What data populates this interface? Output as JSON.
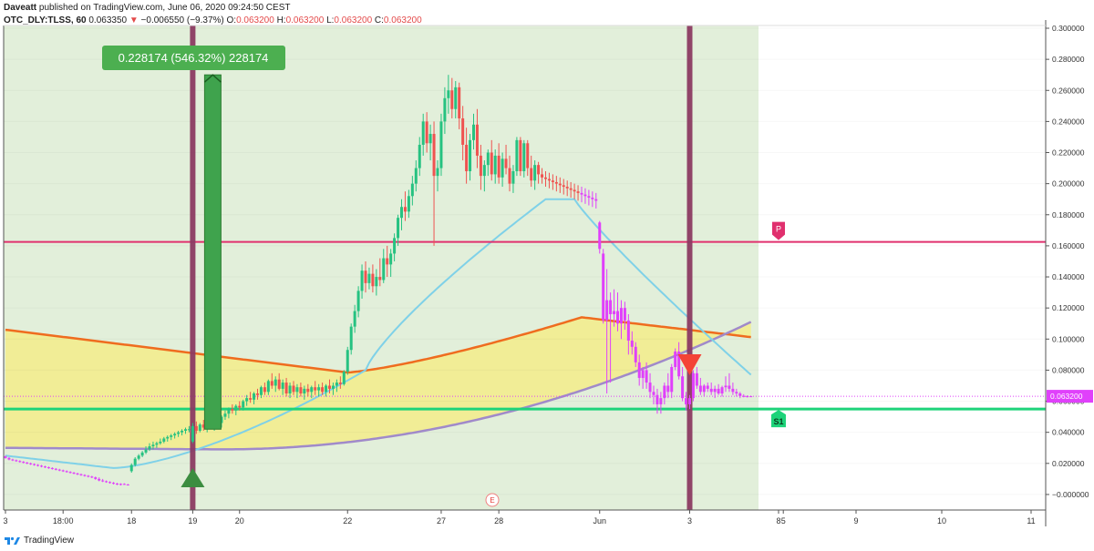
{
  "header": {
    "publisher": "Daveatt",
    "published_text": "published on TradingView.com, June 06, 2020 09:24:50 CEST",
    "symbol": "OTC_DLY:TLSS, 60",
    "last": "0.063350",
    "change": "−0.006550 (−9.37%)",
    "o_label": "O:",
    "o_value": "0.063200",
    "h_label": "H:",
    "h_value": "0.063200",
    "l_label": "L:",
    "l_value": "0.063200",
    "c_label": "C:",
    "c_value": "0.063200"
  },
  "footer": {
    "brand": "TradingView",
    "logo_icon": "tradingview-logo-icon"
  },
  "colors": {
    "bull": "#26c281",
    "bear": "#ef5350",
    "purple_candle": "#e040fb",
    "green_bg": "#e2efda",
    "yellow_fill": "#f1ec92",
    "orange_ma": "#ef6c1f",
    "purple_ma": "#a08aca",
    "cyan_ma": "#7fd1e8",
    "pivot": "#e0306e",
    "support": "#1ed37a",
    "vbar": "#8b3a62"
  },
  "chart_data": {
    "type": "candlestick",
    "y_axis": {
      "range": [
        -0.01,
        0.3
      ],
      "ticks": [
        "0.300000",
        "0.280000",
        "0.260000",
        "0.240000",
        "0.220000",
        "0.200000",
        "0.180000",
        "0.160000",
        "0.140000",
        "0.120000",
        "0.100000",
        "0.080000",
        "0.060000",
        "0.040000",
        "0.020000",
        "−0.000000"
      ],
      "tick_values": [
        0.3,
        0.28,
        0.26,
        0.24,
        0.22,
        0.2,
        0.18,
        0.16,
        0.14,
        0.12,
        0.1,
        0.08,
        0.06,
        0.04,
        0.02,
        0.0
      ],
      "last_price_label": "0.063200",
      "last_price": 0.0632
    },
    "x_axis": {
      "labels": [
        "3",
        "18:00",
        "18",
        "19",
        "20",
        "22",
        "27",
        "28",
        "Jun",
        "3",
        "5",
        "8",
        "9",
        "10",
        "11"
      ],
      "label_index": [
        0,
        16,
        35,
        52,
        65,
        95,
        121,
        137,
        165,
        190,
        216,
        234,
        258,
        283,
        307
      ]
    },
    "measure": {
      "label": "0.228174 (546.32%) 228174",
      "from": 0.042,
      "to": 0.27
    },
    "pivot": {
      "label": "P",
      "value": 0.1625
    },
    "support": {
      "label": "S1",
      "value": 0.055
    },
    "earnings_marker": "E",
    "buy_arrow_index": 52,
    "sell_arrow_index": 190,
    "candles": [
      [
        0.0245,
        0.025,
        0.023,
        0.0235
      ],
      [
        0.0235,
        0.024,
        0.022,
        0.0225
      ],
      [
        0.0225,
        0.023,
        0.0215,
        0.022
      ],
      [
        0.022,
        0.0225,
        0.021,
        0.0215
      ],
      [
        0.0215,
        0.022,
        0.0205,
        0.021
      ],
      [
        0.021,
        0.0215,
        0.02,
        0.0205
      ],
      [
        0.0205,
        0.021,
        0.0195,
        0.02
      ],
      [
        0.02,
        0.0205,
        0.019,
        0.0195
      ],
      [
        0.0195,
        0.02,
        0.0185,
        0.019
      ],
      [
        0.019,
        0.0195,
        0.018,
        0.0185
      ],
      [
        0.0185,
        0.019,
        0.0175,
        0.018
      ],
      [
        0.018,
        0.0185,
        0.017,
        0.0175
      ],
      [
        0.0175,
        0.018,
        0.0165,
        0.017
      ],
      [
        0.017,
        0.0175,
        0.016,
        0.0165
      ],
      [
        0.0165,
        0.017,
        0.0155,
        0.016
      ],
      [
        0.016,
        0.0165,
        0.015,
        0.0155
      ],
      [
        0.0155,
        0.016,
        0.0145,
        0.015
      ],
      [
        0.015,
        0.0155,
        0.014,
        0.0145
      ],
      [
        0.0145,
        0.015,
        0.0135,
        0.014
      ],
      [
        0.014,
        0.0145,
        0.013,
        0.0135
      ],
      [
        0.0135,
        0.014,
        0.0125,
        0.013
      ],
      [
        0.013,
        0.0135,
        0.012,
        0.0125
      ],
      [
        0.0125,
        0.013,
        0.0115,
        0.012
      ],
      [
        0.012,
        0.0125,
        0.011,
        0.0115
      ],
      [
        0.0115,
        0.012,
        0.0105,
        0.011
      ],
      [
        0.011,
        0.0115,
        0.0095,
        0.01
      ],
      [
        0.01,
        0.011,
        0.0085,
        0.009
      ],
      [
        0.009,
        0.01,
        0.008,
        0.0085
      ],
      [
        0.0085,
        0.009,
        0.0075,
        0.008
      ],
      [
        0.008,
        0.0085,
        0.007,
        0.0075
      ],
      [
        0.0075,
        0.008,
        0.0065,
        0.007
      ],
      [
        0.007,
        0.0075,
        0.006,
        0.0065
      ],
      [
        0.0065,
        0.0072,
        0.0058,
        0.0068
      ],
      [
        0.0068,
        0.0072,
        0.0062,
        0.0064
      ],
      [
        0.0064,
        0.0068,
        0.0058,
        0.0061
      ],
      [
        0.015,
        0.02,
        0.014,
        0.019
      ],
      [
        0.019,
        0.024,
        0.018,
        0.023
      ],
      [
        0.023,
        0.026,
        0.022,
        0.025
      ],
      [
        0.025,
        0.028,
        0.024,
        0.027
      ],
      [
        0.027,
        0.031,
        0.026,
        0.029
      ],
      [
        0.029,
        0.033,
        0.028,
        0.031
      ],
      [
        0.031,
        0.034,
        0.029,
        0.032
      ],
      [
        0.032,
        0.034,
        0.03,
        0.033
      ],
      [
        0.033,
        0.036,
        0.032,
        0.034
      ],
      [
        0.034,
        0.037,
        0.033,
        0.036
      ],
      [
        0.036,
        0.038,
        0.034,
        0.037
      ],
      [
        0.037,
        0.039,
        0.035,
        0.038
      ],
      [
        0.038,
        0.04,
        0.036,
        0.039
      ],
      [
        0.039,
        0.041,
        0.037,
        0.04
      ],
      [
        0.04,
        0.042,
        0.038,
        0.041
      ],
      [
        0.041,
        0.043,
        0.039,
        0.042
      ],
      [
        0.042,
        0.044,
        0.04,
        0.042
      ],
      [
        0.034,
        0.046,
        0.033,
        0.044
      ],
      [
        0.044,
        0.047,
        0.039,
        0.041
      ],
      [
        0.041,
        0.046,
        0.04,
        0.045
      ],
      [
        0.045,
        0.048,
        0.041,
        0.043
      ],
      [
        0.043,
        0.047,
        0.04,
        0.046
      ],
      [
        0.046,
        0.049,
        0.042,
        0.044
      ],
      [
        0.044,
        0.048,
        0.041,
        0.047
      ],
      [
        0.047,
        0.05,
        0.043,
        0.046
      ],
      [
        0.046,
        0.051,
        0.043,
        0.05
      ],
      [
        0.05,
        0.054,
        0.048,
        0.052
      ],
      [
        0.052,
        0.056,
        0.049,
        0.055
      ],
      [
        0.055,
        0.058,
        0.052,
        0.054
      ],
      [
        0.054,
        0.058,
        0.051,
        0.057
      ],
      [
        0.057,
        0.06,
        0.054,
        0.056
      ],
      [
        0.056,
        0.061,
        0.054,
        0.06
      ],
      [
        0.06,
        0.064,
        0.057,
        0.062
      ],
      [
        0.062,
        0.066,
        0.059,
        0.061
      ],
      [
        0.061,
        0.066,
        0.058,
        0.065
      ],
      [
        0.065,
        0.068,
        0.061,
        0.064
      ],
      [
        0.064,
        0.07,
        0.062,
        0.069
      ],
      [
        0.069,
        0.072,
        0.064,
        0.066
      ],
      [
        0.066,
        0.074,
        0.064,
        0.073
      ],
      [
        0.073,
        0.078,
        0.068,
        0.07
      ],
      [
        0.07,
        0.076,
        0.066,
        0.074
      ],
      [
        0.074,
        0.078,
        0.067,
        0.068
      ],
      [
        0.068,
        0.074,
        0.064,
        0.072
      ],
      [
        0.072,
        0.075,
        0.063,
        0.065
      ],
      [
        0.065,
        0.072,
        0.062,
        0.07
      ],
      [
        0.07,
        0.073,
        0.064,
        0.066
      ],
      [
        0.066,
        0.071,
        0.062,
        0.069
      ],
      [
        0.069,
        0.072,
        0.063,
        0.065
      ],
      [
        0.065,
        0.07,
        0.061,
        0.068
      ],
      [
        0.068,
        0.071,
        0.063,
        0.066
      ],
      [
        0.066,
        0.07,
        0.062,
        0.069
      ],
      [
        0.069,
        0.073,
        0.064,
        0.067
      ],
      [
        0.067,
        0.071,
        0.063,
        0.069
      ],
      [
        0.069,
        0.072,
        0.064,
        0.066
      ],
      [
        0.066,
        0.071,
        0.063,
        0.07
      ],
      [
        0.07,
        0.074,
        0.065,
        0.068
      ],
      [
        0.068,
        0.072,
        0.064,
        0.07
      ],
      [
        0.07,
        0.074,
        0.066,
        0.072
      ],
      [
        0.072,
        0.076,
        0.068,
        0.071
      ],
      [
        0.071,
        0.08,
        0.07,
        0.079
      ],
      [
        0.079,
        0.095,
        0.077,
        0.093
      ],
      [
        0.093,
        0.11,
        0.09,
        0.108
      ],
      [
        0.108,
        0.122,
        0.104,
        0.118
      ],
      [
        0.118,
        0.134,
        0.114,
        0.131
      ],
      [
        0.131,
        0.148,
        0.126,
        0.144
      ],
      [
        0.144,
        0.15,
        0.13,
        0.136
      ],
      [
        0.136,
        0.146,
        0.132,
        0.142
      ],
      [
        0.142,
        0.148,
        0.13,
        0.134
      ],
      [
        0.134,
        0.145,
        0.128,
        0.14
      ],
      [
        0.14,
        0.152,
        0.134,
        0.138
      ],
      [
        0.138,
        0.158,
        0.136,
        0.152
      ],
      [
        0.152,
        0.16,
        0.14,
        0.148
      ],
      [
        0.148,
        0.158,
        0.14,
        0.155
      ],
      [
        0.155,
        0.168,
        0.15,
        0.165
      ],
      [
        0.165,
        0.18,
        0.16,
        0.178
      ],
      [
        0.178,
        0.19,
        0.17,
        0.185
      ],
      [
        0.185,
        0.195,
        0.176,
        0.182
      ],
      [
        0.182,
        0.196,
        0.178,
        0.192
      ],
      [
        0.192,
        0.205,
        0.186,
        0.2
      ],
      [
        0.2,
        0.215,
        0.195,
        0.21
      ],
      [
        0.21,
        0.23,
        0.205,
        0.225
      ],
      [
        0.225,
        0.245,
        0.218,
        0.24
      ],
      [
        0.24,
        0.246,
        0.22,
        0.226
      ],
      [
        0.226,
        0.238,
        0.215,
        0.232
      ],
      [
        0.232,
        0.24,
        0.16,
        0.205
      ],
      [
        0.205,
        0.215,
        0.195,
        0.21
      ],
      [
        0.21,
        0.245,
        0.205,
        0.24
      ],
      [
        0.24,
        0.262,
        0.232,
        0.255
      ],
      [
        0.255,
        0.27,
        0.245,
        0.26
      ],
      [
        0.26,
        0.268,
        0.242,
        0.248
      ],
      [
        0.248,
        0.266,
        0.242,
        0.262
      ],
      [
        0.262,
        0.265,
        0.235,
        0.242
      ],
      [
        0.242,
        0.25,
        0.215,
        0.225
      ],
      [
        0.225,
        0.236,
        0.2,
        0.208
      ],
      [
        0.208,
        0.232,
        0.202,
        0.228
      ],
      [
        0.228,
        0.245,
        0.222,
        0.238
      ],
      [
        0.238,
        0.248,
        0.21,
        0.218
      ],
      [
        0.218,
        0.225,
        0.196,
        0.205
      ],
      [
        0.205,
        0.215,
        0.195,
        0.212
      ],
      [
        0.212,
        0.222,
        0.205,
        0.22
      ],
      [
        0.22,
        0.228,
        0.202,
        0.206
      ],
      [
        0.206,
        0.222,
        0.2,
        0.218
      ],
      [
        0.218,
        0.226,
        0.2,
        0.204
      ],
      [
        0.204,
        0.22,
        0.198,
        0.216
      ],
      [
        0.216,
        0.225,
        0.206,
        0.21
      ],
      [
        0.21,
        0.218,
        0.195,
        0.2
      ],
      [
        0.2,
        0.212,
        0.194,
        0.208
      ],
      [
        0.208,
        0.23,
        0.205,
        0.228
      ],
      [
        0.228,
        0.23,
        0.205,
        0.208
      ],
      [
        0.208,
        0.228,
        0.204,
        0.226
      ],
      [
        0.226,
        0.228,
        0.205,
        0.21
      ],
      [
        0.21,
        0.218,
        0.198,
        0.202
      ],
      [
        0.202,
        0.215,
        0.196,
        0.212
      ],
      [
        0.212,
        0.214,
        0.2,
        0.206
      ],
      [
        0.206,
        0.21,
        0.2,
        0.204
      ],
      [
        0.204,
        0.208,
        0.198,
        0.203
      ],
      [
        0.203,
        0.207,
        0.197,
        0.202
      ],
      [
        0.202,
        0.206,
        0.196,
        0.201
      ],
      [
        0.201,
        0.205,
        0.195,
        0.2
      ],
      [
        0.2,
        0.204,
        0.194,
        0.199
      ],
      [
        0.199,
        0.203,
        0.193,
        0.198
      ],
      [
        0.198,
        0.202,
        0.192,
        0.197
      ],
      [
        0.197,
        0.201,
        0.191,
        0.196
      ],
      [
        0.196,
        0.2,
        0.19,
        0.195
      ],
      [
        0.195,
        0.199,
        0.189,
        0.194
      ],
      [
        0.194,
        0.198,
        0.188,
        0.193
      ],
      [
        0.193,
        0.197,
        0.187,
        0.192
      ],
      [
        0.192,
        0.196,
        0.186,
        0.191
      ],
      [
        0.191,
        0.195,
        0.185,
        0.19
      ],
      [
        0.19,
        0.194,
        0.184,
        0.189
      ],
      [
        0.158,
        0.176,
        0.155,
        0.175
      ],
      [
        0.155,
        0.158,
        0.11,
        0.112
      ],
      [
        0.112,
        0.145,
        0.065,
        0.125
      ],
      [
        0.125,
        0.13,
        0.072,
        0.116
      ],
      [
        0.116,
        0.132,
        0.108,
        0.118
      ],
      [
        0.118,
        0.13,
        0.105,
        0.11
      ],
      [
        0.11,
        0.125,
        0.1,
        0.12
      ],
      [
        0.12,
        0.124,
        0.106,
        0.112
      ],
      [
        0.112,
        0.116,
        0.09,
        0.099
      ],
      [
        0.099,
        0.105,
        0.09,
        0.095
      ],
      [
        0.095,
        0.098,
        0.082,
        0.085
      ],
      [
        0.085,
        0.09,
        0.07,
        0.075
      ],
      [
        0.075,
        0.082,
        0.068,
        0.08
      ],
      [
        0.08,
        0.085,
        0.068,
        0.072
      ],
      [
        0.072,
        0.078,
        0.062,
        0.066
      ],
      [
        0.066,
        0.07,
        0.058,
        0.064
      ],
      [
        0.064,
        0.068,
        0.052,
        0.058
      ],
      [
        0.058,
        0.066,
        0.052,
        0.062
      ],
      [
        0.062,
        0.072,
        0.058,
        0.07
      ],
      [
        0.07,
        0.078,
        0.062,
        0.066
      ],
      [
        0.066,
        0.084,
        0.062,
        0.082
      ],
      [
        0.082,
        0.094,
        0.08,
        0.092
      ],
      [
        0.092,
        0.098,
        0.074,
        0.076
      ],
      [
        0.076,
        0.082,
        0.06,
        0.062
      ],
      [
        0.062,
        0.066,
        0.054,
        0.058
      ],
      [
        0.058,
        0.064,
        0.055,
        0.062
      ],
      [
        0.062,
        0.08,
        0.06,
        0.078
      ],
      [
        0.078,
        0.082,
        0.068,
        0.07
      ],
      [
        0.07,
        0.075,
        0.064,
        0.066
      ],
      [
        0.066,
        0.071,
        0.063,
        0.07
      ],
      [
        0.07,
        0.072,
        0.066,
        0.068
      ],
      [
        0.068,
        0.072,
        0.064,
        0.066
      ],
      [
        0.066,
        0.07,
        0.062,
        0.068
      ],
      [
        0.068,
        0.071,
        0.064,
        0.065
      ],
      [
        0.065,
        0.07,
        0.063,
        0.069
      ],
      [
        0.069,
        0.076,
        0.066,
        0.07
      ],
      [
        0.07,
        0.078,
        0.066,
        0.068
      ],
      [
        0.068,
        0.072,
        0.064,
        0.066
      ],
      [
        0.066,
        0.068,
        0.063,
        0.065
      ],
      [
        0.065,
        0.066,
        0.062,
        0.0634
      ],
      [
        0.0634,
        0.0645,
        0.0625,
        0.063
      ],
      [
        0.063,
        0.0638,
        0.0624,
        0.0632
      ],
      [
        0.0632,
        0.0636,
        0.0628,
        0.0632
      ]
    ]
  }
}
